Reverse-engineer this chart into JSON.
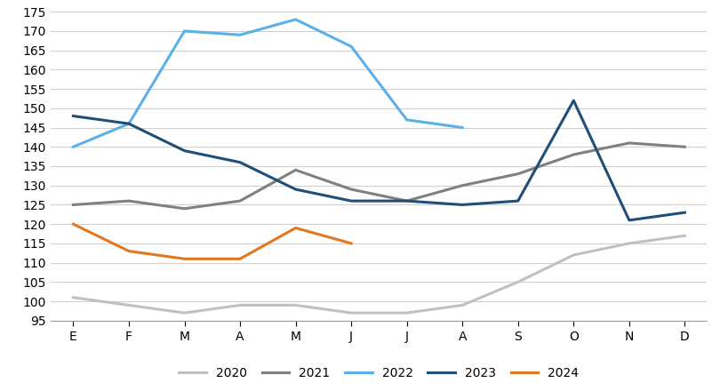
{
  "months": [
    "E",
    "F",
    "M",
    "A",
    "M",
    "J",
    "J",
    "A",
    "S",
    "O",
    "N",
    "D"
  ],
  "series": {
    "2020": [
      101,
      99,
      97,
      99,
      99,
      97,
      97,
      99,
      105,
      112,
      115,
      117
    ],
    "2021": [
      125,
      126,
      124,
      126,
      134,
      129,
      126,
      130,
      133,
      138,
      141,
      140
    ],
    "2022": [
      140,
      146,
      170,
      169,
      173,
      166,
      147,
      145,
      null,
      null,
      null,
      null
    ],
    "2023": [
      148,
      146,
      139,
      136,
      129,
      126,
      126,
      125,
      126,
      152,
      121,
      123
    ],
    "2024": [
      120,
      113,
      111,
      111,
      119,
      115,
      null,
      null,
      null,
      null,
      null,
      null
    ]
  },
  "colors": {
    "2020": "#c0c0c0",
    "2021": "#808080",
    "2022": "#5bb0e8",
    "2023": "#1f4e79",
    "2024": "#e07820"
  },
  "ylim": [
    95,
    175
  ],
  "yticks": [
    95,
    100,
    105,
    110,
    115,
    120,
    125,
    130,
    135,
    140,
    145,
    150,
    155,
    160,
    165,
    170,
    175
  ],
  "bg_color": "#ffffff",
  "grid_color": "#d0d0d0",
  "legend_entries": [
    "2020",
    "2021",
    "2022",
    "2023",
    "2024"
  ],
  "linewidth": 2.2
}
